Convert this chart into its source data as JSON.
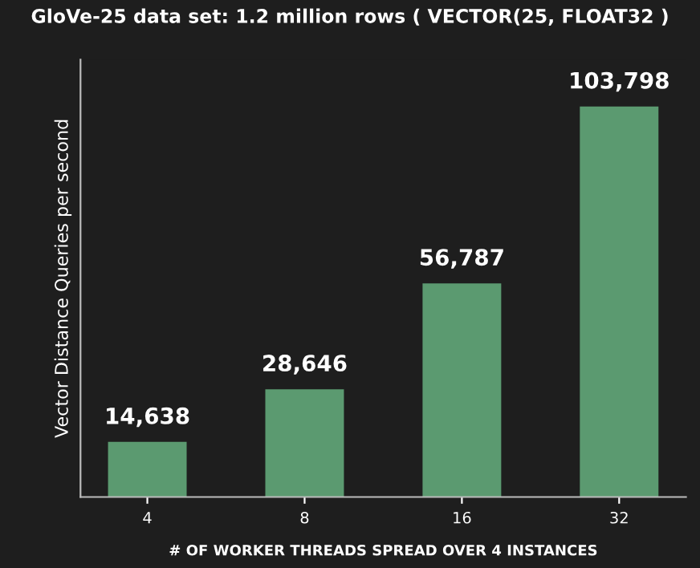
{
  "chart_data": {
    "type": "bar",
    "title": "GloVe-25 data set: 1.2 million rows ( VECTOR(25, FLOAT32 )",
    "xlabel": "# OF WORKER THREADS SPREAD OVER 4 INSTANCES",
    "ylabel": "Vector Distance Queries per second",
    "categories": [
      "4",
      "8",
      "16",
      "32"
    ],
    "values": [
      14638,
      28646,
      56787,
      103798
    ],
    "value_labels": [
      "14,638",
      "28,646",
      "56,787",
      "103,798"
    ],
    "color": "#5b9a70",
    "tick_labels": "x",
    "grid": false,
    "legend": false
  }
}
